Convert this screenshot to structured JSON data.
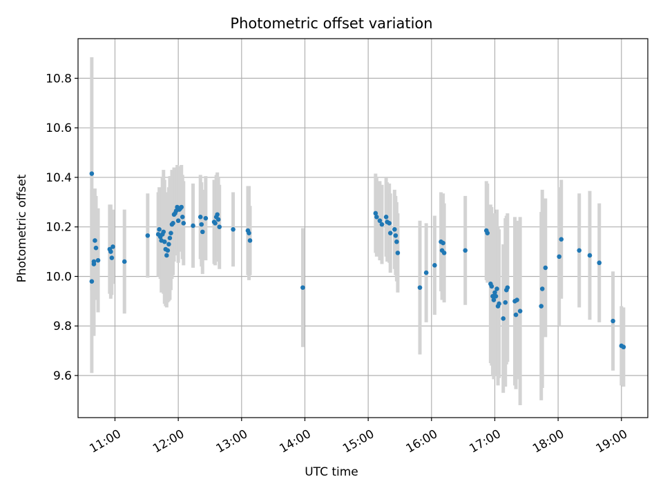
{
  "chart_data": {
    "type": "scatter",
    "title": "Photometric offset variation",
    "xlabel": "UTC time",
    "ylabel": "Photometric offset",
    "x_format": "HH:MM",
    "xlim": [
      "10:25",
      "19:25"
    ],
    "ylim": [
      9.43,
      10.96
    ],
    "xticks": [
      "11:00",
      "12:00",
      "13:00",
      "14:00",
      "15:00",
      "16:00",
      "17:00",
      "18:00",
      "19:00"
    ],
    "yticks": [
      9.6,
      9.8,
      10.0,
      10.2,
      10.4,
      10.6,
      10.8
    ],
    "ytick_labels": [
      "9.6",
      "9.8",
      "10.0",
      "10.2",
      "10.4",
      "10.6",
      "10.8"
    ],
    "grid": true,
    "point_color": "#1f77b4",
    "errorbar_color": "#d3d3d3",
    "series": [
      {
        "x": [
          "10:38",
          "10:38",
          "10:40",
          "10:40",
          "10:41",
          "10:42",
          "10:44",
          "10:55",
          "10:56",
          "10:57",
          "10:58",
          "11:09",
          "11:31",
          "11:41",
          "11:42",
          "11:43",
          "11:44",
          "11:45",
          "11:46",
          "11:47",
          "11:48",
          "11:49",
          "11:50",
          "11:51",
          "11:52",
          "11:53",
          "11:54",
          "11:55",
          "11:56",
          "11:57",
          "11:58",
          "11:59",
          "12:00",
          "12:01",
          "12:02",
          "12:03",
          "12:04",
          "12:05",
          "12:14",
          "12:21",
          "12:22",
          "12:23",
          "12:26",
          "12:34",
          "12:35",
          "12:36",
          "12:37",
          "12:38",
          "12:39",
          "12:52",
          "13:06",
          "13:07",
          "13:08",
          "13:58",
          "15:07",
          "15:08",
          "15:11",
          "15:13",
          "15:17",
          "15:18",
          "15:20",
          "15:21",
          "15:25",
          "15:26",
          "15:27",
          "15:28",
          "15:49",
          "15:55",
          "16:03",
          "16:09",
          "16:10",
          "16:11",
          "16:12",
          "16:32",
          "16:52",
          "16:53",
          "16:56",
          "16:57",
          "16:58",
          "16:59",
          "17:00",
          "17:01",
          "17:02",
          "17:03",
          "17:04",
          "17:08",
          "17:10",
          "17:11",
          "17:12",
          "17:19",
          "17:20",
          "17:21",
          "17:24",
          "17:44",
          "17:45",
          "17:48",
          "18:01",
          "18:03",
          "18:20",
          "18:30",
          "18:39",
          "18:52",
          "19:00",
          "19:02"
        ],
        "y": [
          10.415,
          9.98,
          10.06,
          10.05,
          10.145,
          10.115,
          10.065,
          10.11,
          10.1,
          10.075,
          10.12,
          10.06,
          10.165,
          10.17,
          10.19,
          10.16,
          10.145,
          10.17,
          10.18,
          10.14,
          10.11,
          10.085,
          10.105,
          10.13,
          10.155,
          10.175,
          10.21,
          10.215,
          10.25,
          10.255,
          10.265,
          10.28,
          10.225,
          10.27,
          10.275,
          10.28,
          10.24,
          10.215,
          10.205,
          10.24,
          10.21,
          10.18,
          10.235,
          10.22,
          10.215,
          10.24,
          10.25,
          10.23,
          10.2,
          10.19,
          10.185,
          10.175,
          10.145,
          9.955,
          10.255,
          10.24,
          10.225,
          10.21,
          10.24,
          10.22,
          10.215,
          10.175,
          10.19,
          10.165,
          10.14,
          10.095,
          9.955,
          10.015,
          10.045,
          10.14,
          10.105,
          10.135,
          10.095,
          10.105,
          10.185,
          10.175,
          9.97,
          9.96,
          9.92,
          9.905,
          9.935,
          9.92,
          9.95,
          9.88,
          9.89,
          9.83,
          9.895,
          9.945,
          9.955,
          9.9,
          9.845,
          9.905,
          9.86,
          9.88,
          9.95,
          10.035,
          10.08,
          10.15,
          10.105,
          10.085,
          10.055,
          9.82,
          9.72,
          9.715
        ],
        "yerr": [
          0.47,
          0.37,
          0.29,
          0.29,
          0.21,
          0.21,
          0.21,
          0.18,
          0.19,
          0.15,
          0.15,
          0.21,
          0.17,
          0.17,
          0.17,
          0.17,
          0.21,
          0.23,
          0.25,
          0.25,
          0.23,
          0.21,
          0.21,
          0.23,
          0.25,
          0.23,
          0.22,
          0.21,
          0.19,
          0.17,
          0.17,
          0.17,
          0.17,
          0.17,
          0.17,
          0.17,
          0.17,
          0.17,
          0.17,
          0.17,
          0.17,
          0.17,
          0.17,
          0.17,
          0.17,
          0.17,
          0.17,
          0.17,
          0.17,
          0.15,
          0.18,
          0.19,
          0.14,
          0.24,
          0.16,
          0.16,
          0.16,
          0.16,
          0.16,
          0.16,
          0.16,
          0.16,
          0.16,
          0.16,
          0.16,
          0.16,
          0.27,
          0.2,
          0.2,
          0.2,
          0.2,
          0.2,
          0.2,
          0.22,
          0.2,
          0.2,
          0.32,
          0.32,
          0.32,
          0.32,
          0.32,
          0.32,
          0.32,
          0.32,
          0.3,
          0.3,
          0.34,
          0.3,
          0.3,
          0.34,
          0.3,
          0.32,
          0.38,
          0.38,
          0.4,
          0.28,
          0.28,
          0.24,
          0.23,
          0.26,
          0.24,
          0.2,
          0.16,
          0.16
        ]
      }
    ]
  }
}
